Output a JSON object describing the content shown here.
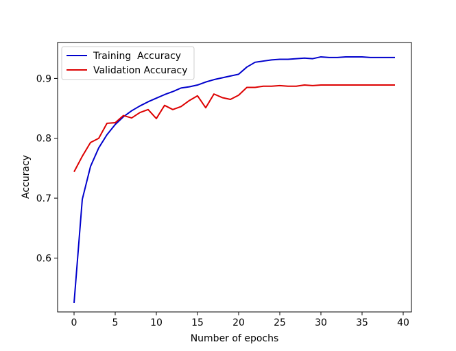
{
  "chart_data": {
    "type": "line",
    "title": "",
    "xlabel": "Number of epochs",
    "ylabel": "Accuracy",
    "xlim": [
      -2,
      41
    ],
    "ylim": [
      0.51,
      0.96
    ],
    "xticks": [
      0,
      5,
      10,
      15,
      20,
      25,
      30,
      35,
      40
    ],
    "xtick_labels": [
      "0",
      "5",
      "10",
      "15",
      "20",
      "25",
      "30",
      "35",
      "40"
    ],
    "yticks": [
      0.6,
      0.7,
      0.8,
      0.9
    ],
    "ytick_labels": [
      "0.6",
      "0.7",
      "0.8",
      "0.9"
    ],
    "grid": false,
    "legend_position": "upper-left",
    "x": [
      0,
      1,
      2,
      3,
      4,
      5,
      6,
      7,
      8,
      9,
      10,
      11,
      12,
      13,
      14,
      15,
      16,
      17,
      18,
      19,
      20,
      21,
      22,
      23,
      24,
      25,
      26,
      27,
      28,
      29,
      30,
      31,
      32,
      33,
      34,
      35,
      36,
      37,
      38,
      39
    ],
    "series": [
      {
        "name": "Training  Accuracy",
        "color": "#0000cc",
        "values": [
          0.525,
          0.698,
          0.753,
          0.784,
          0.806,
          0.823,
          0.836,
          0.846,
          0.854,
          0.861,
          0.867,
          0.873,
          0.878,
          0.884,
          0.886,
          0.889,
          0.894,
          0.898,
          0.901,
          0.904,
          0.907,
          0.919,
          0.927,
          0.929,
          0.931,
          0.932,
          0.932,
          0.933,
          0.934,
          0.933,
          0.936,
          0.935,
          0.935,
          0.936,
          0.936,
          0.936,
          0.935,
          0.935,
          0.935,
          0.935
        ]
      },
      {
        "name": "Validation Accuracy",
        "color": "#dd0000",
        "values": [
          0.744,
          0.77,
          0.793,
          0.8,
          0.825,
          0.826,
          0.838,
          0.834,
          0.843,
          0.848,
          0.833,
          0.855,
          0.848,
          0.853,
          0.863,
          0.871,
          0.851,
          0.874,
          0.868,
          0.865,
          0.872,
          0.885,
          0.885,
          0.887,
          0.887,
          0.888,
          0.887,
          0.887,
          0.889,
          0.888,
          0.889,
          0.889,
          0.889,
          0.889,
          0.889,
          0.889,
          0.889,
          0.889,
          0.889,
          0.889
        ]
      }
    ]
  }
}
